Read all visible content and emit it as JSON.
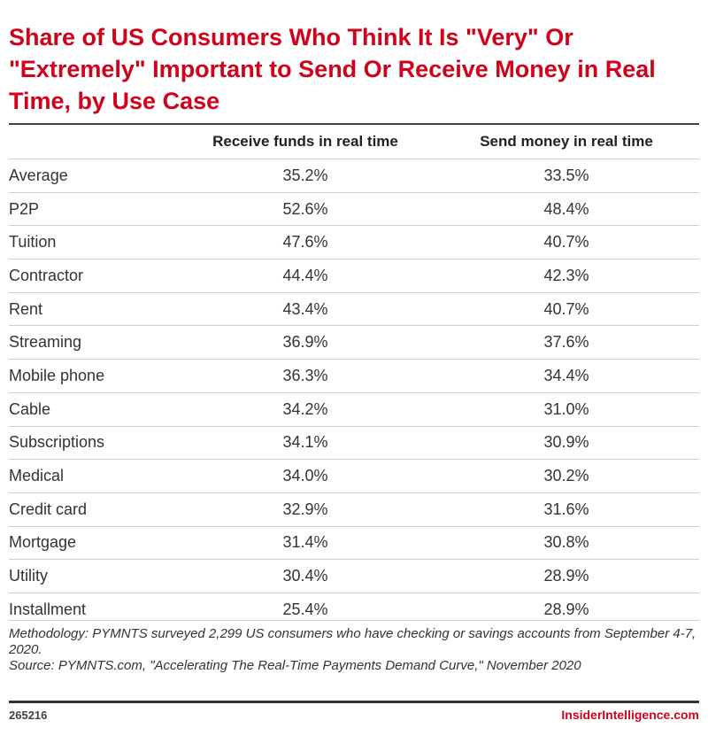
{
  "chart_data": {
    "type": "table",
    "title": "Share of US Consumers Who Think It Is \"Very\" Or \"Extremely\" Important to Send Or Receive Money in Real Time, by Use Case",
    "columns": [
      "",
      "Receive funds in real time",
      "Send money in real time"
    ],
    "rows": [
      {
        "label": "Average",
        "receive": "35.2%",
        "send": "33.5%"
      },
      {
        "label": "P2P",
        "receive": "52.6%",
        "send": "48.4%"
      },
      {
        "label": "Tuition",
        "receive": "47.6%",
        "send": "40.7%"
      },
      {
        "label": "Contractor",
        "receive": "44.4%",
        "send": "42.3%"
      },
      {
        "label": "Rent",
        "receive": "43.4%",
        "send": "40.7%"
      },
      {
        "label": "Streaming",
        "receive": "36.9%",
        "send": "37.6%"
      },
      {
        "label": "Mobile phone",
        "receive": "36.3%",
        "send": "34.4%"
      },
      {
        "label": "Cable",
        "receive": "34.2%",
        "send": "31.0%"
      },
      {
        "label": "Subscriptions",
        "receive": "34.1%",
        "send": "30.9%"
      },
      {
        "label": "Medical",
        "receive": "34.0%",
        "send": "30.2%"
      },
      {
        "label": "Credit card",
        "receive": "32.9%",
        "send": "31.6%"
      },
      {
        "label": "Mortgage",
        "receive": "31.4%",
        "send": "30.8%"
      },
      {
        "label": "Utility",
        "receive": "30.4%",
        "send": "28.9%"
      },
      {
        "label": "Installment",
        "receive": "25.4%",
        "send": "28.9%"
      }
    ]
  },
  "notes": {
    "methodology": "Methodology: PYMNTS surveyed 2,299 US consumers who have checking or savings accounts from September 4-7, 2020.",
    "source": "Source: PYMNTS.com, \"Accelerating The Real-Time Payments Demand Curve,\" November 2020"
  },
  "footer": {
    "chart_id": "265216",
    "brand": "InsiderIntelligence.com"
  },
  "colors": {
    "title": "#d0021b",
    "brand": "#d0021b",
    "rules": "#444444",
    "row_divider": "#cfcfcf"
  }
}
